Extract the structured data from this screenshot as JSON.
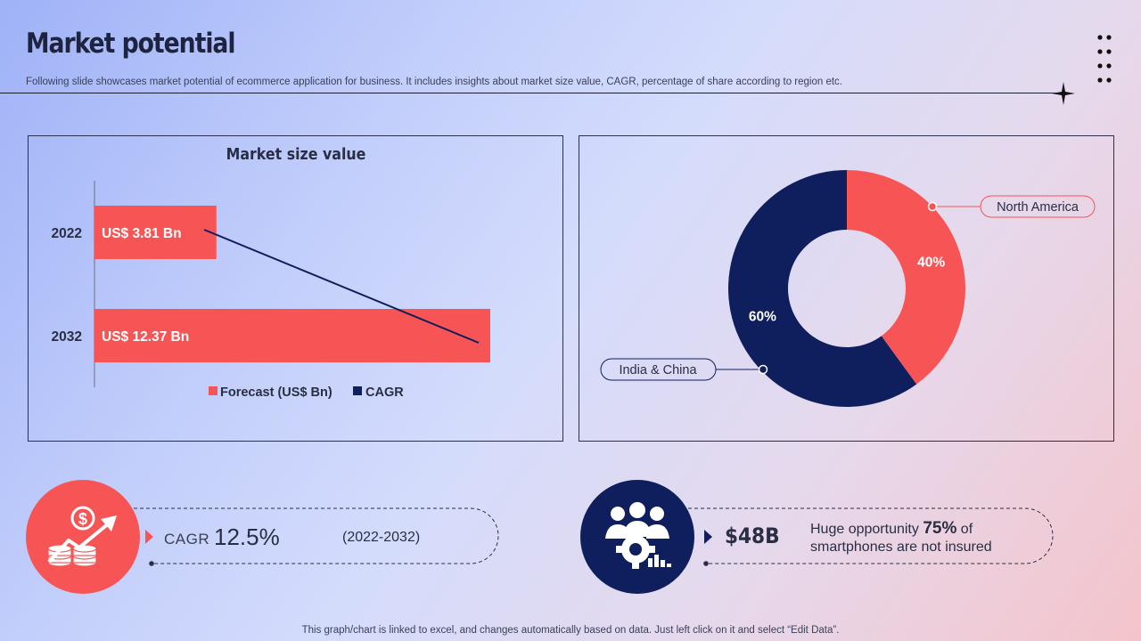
{
  "page": {
    "title": "Market potential",
    "subtitle": "Following slide showcases market potential of ecommerce application for business. It includes insights about market size value, CAGR,  percentage of share according to region etc.",
    "footer": "This graph/chart is linked to excel,  and changes automatically based on data. Just left click on it and select “Edit Data”."
  },
  "colors": {
    "accent_red": "#f75555",
    "navy": "#0f1e5c",
    "text_dark": "#2a2e45"
  },
  "chart_data": [
    {
      "type": "bar",
      "orientation": "horizontal",
      "title": "Market size value",
      "categories": [
        "2022",
        "2032"
      ],
      "series": [
        {
          "name": "Forecast (US$ Bn)",
          "values": [
            3.81,
            12.37
          ],
          "labels": [
            "US$ 3.81 Bn",
            "US$ 12.37 Bn"
          ],
          "color": "#f75555"
        },
        {
          "name": "CAGR",
          "type": "line",
          "color": "#0f1e5c"
        }
      ],
      "xlim": [
        0,
        14
      ],
      "legend": [
        "Forecast (US$ Bn)",
        "CAGR"
      ],
      "legend_position": "bottom"
    },
    {
      "type": "pie",
      "variant": "donut",
      "slices": [
        {
          "label": "North America",
          "value": 40,
          "value_label": "40%",
          "color": "#f75555"
        },
        {
          "label": "India & China",
          "value": 60,
          "value_label": "60%",
          "color": "#0f1e5c"
        }
      ]
    }
  ],
  "kpis": {
    "cagr": {
      "label": "CAGR",
      "value": "12.5%",
      "range": "(2022-2032)",
      "icon": "dollar-growth-icon"
    },
    "opportunity": {
      "value": "$48B",
      "text_prefix": "Huge opportunity",
      "percent": "75%",
      "text_mid": "of",
      "text_suffix": "smartphones  are not insured",
      "icon": "team-gear-icon"
    }
  }
}
